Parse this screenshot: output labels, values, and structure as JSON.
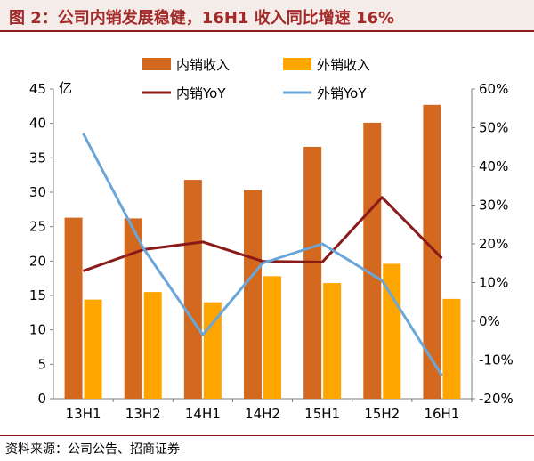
{
  "title": "图 2：公司内销发展稳健，16H1 收入同比增速 16%",
  "source": "资料来源：公司公告、招商证券",
  "colors": {
    "domestic_bar": "#d2691e",
    "export_bar": "#ffa500",
    "domestic_yoy": "#8b1a1a",
    "export_yoy": "#6aa6d9",
    "title_text": "#a52a2a",
    "title_bg": "#f3ece8"
  },
  "chart_data": {
    "type": "bar",
    "categories": [
      "13H1",
      "13H2",
      "14H1",
      "14H2",
      "15H1",
      "15H2",
      "16H1"
    ],
    "ylabel": "亿",
    "ylim": [
      0,
      45
    ],
    "yticks": [
      "0",
      "5",
      "10",
      "15",
      "20",
      "25",
      "30",
      "35",
      "40",
      "45"
    ],
    "y2lim": [
      -20,
      60
    ],
    "y2ticks": [
      "-20%",
      "-10%",
      "0%",
      "10%",
      "20%",
      "30%",
      "40%",
      "50%",
      "60%"
    ],
    "legend_position": "top",
    "grid": false,
    "series": [
      {
        "name": "内销收入",
        "kind": "bar",
        "axis": "left",
        "values": [
          26.3,
          26.2,
          31.8,
          30.3,
          36.6,
          40.1,
          42.7
        ]
      },
      {
        "name": "外销收入",
        "kind": "bar",
        "axis": "left",
        "values": [
          14.4,
          15.5,
          14.0,
          17.8,
          16.8,
          19.6,
          14.5
        ]
      },
      {
        "name": "内销YoY",
        "kind": "line",
        "axis": "right",
        "values": [
          13.0,
          18.5,
          20.5,
          15.5,
          15.3,
          32.0,
          16.3
        ]
      },
      {
        "name": "外销YoY",
        "kind": "line",
        "axis": "right",
        "values": [
          48.5,
          19.0,
          -3.5,
          15.0,
          20.0,
          10.5,
          -14.0
        ]
      }
    ]
  }
}
